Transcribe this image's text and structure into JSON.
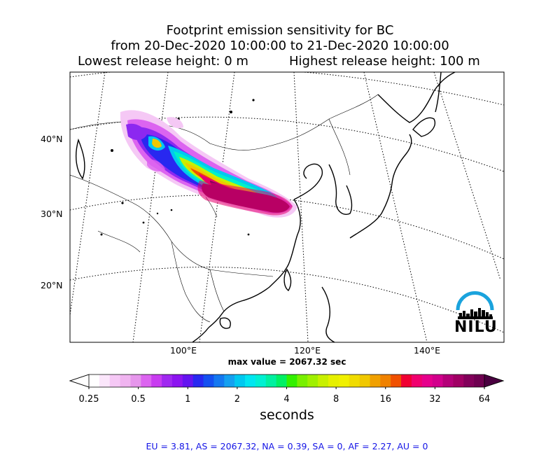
{
  "title": {
    "line1": "Footprint emission sensitivity for BC",
    "line2": "from 20-Dec-2020 10:00:00 to 21-Dec-2020 10:00:00",
    "lowest": "Lowest release height: 0 m",
    "highest": "Highest release height: 100 m"
  },
  "map": {
    "lat_labels": [
      "40°N",
      "30°N",
      "20°N"
    ],
    "lon_labels": [
      "100°E",
      "120°E",
      "140°E"
    ],
    "logo_text": "NILU",
    "logo_color": "#1aa3dd"
  },
  "max_value": "max value = 2067.32 sec",
  "colorbar": {
    "tick_labels": [
      "0.25",
      "0.5",
      "1",
      "2",
      "4",
      "8",
      "16",
      "32",
      "64"
    ],
    "units": "seconds"
  },
  "footer": "EU = 3.81,  AS = 2067.32,  NA = 0.39,  SA = 0,  AF = 2.27,  AU = 0"
}
